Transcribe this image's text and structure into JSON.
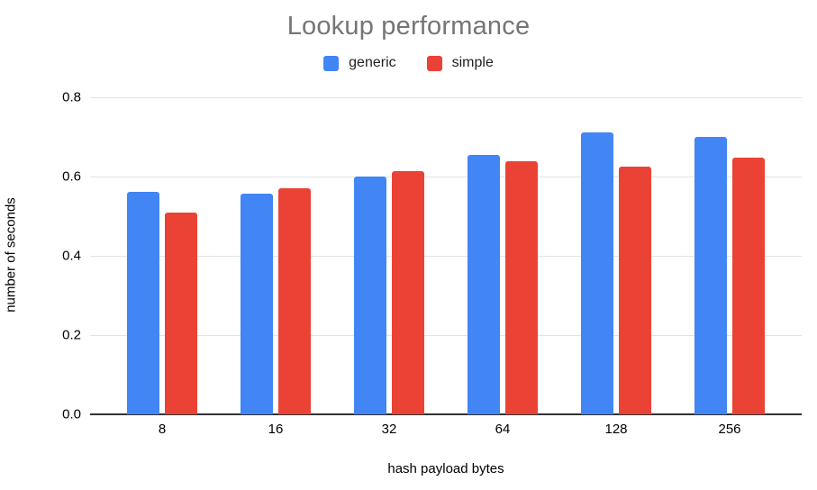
{
  "chart_data": {
    "type": "bar",
    "title": "Lookup performance",
    "xlabel": "hash payload bytes",
    "ylabel": "number of seconds",
    "categories": [
      "8",
      "16",
      "32",
      "64",
      "128",
      "256"
    ],
    "series": [
      {
        "name": "generic",
        "color": "#4285F4",
        "values": [
          0.562,
          0.556,
          0.6,
          0.655,
          0.712,
          0.7
        ]
      },
      {
        "name": "simple",
        "color": "#EA4335",
        "values": [
          0.51,
          0.57,
          0.613,
          0.638,
          0.625,
          0.648
        ]
      }
    ],
    "ylim": [
      0,
      0.8
    ],
    "yticks": [
      0.0,
      0.2,
      0.4,
      0.6,
      0.8
    ],
    "ytick_labels": [
      "0.0",
      "0.2",
      "0.4",
      "0.6",
      "0.8"
    ],
    "grid": true,
    "legend_position": "top"
  },
  "colors": {
    "title_text": "#757575",
    "axis_text": "#000000",
    "gridline": "#e3e3e3",
    "axis_line": "#333333",
    "background": "#ffffff"
  }
}
